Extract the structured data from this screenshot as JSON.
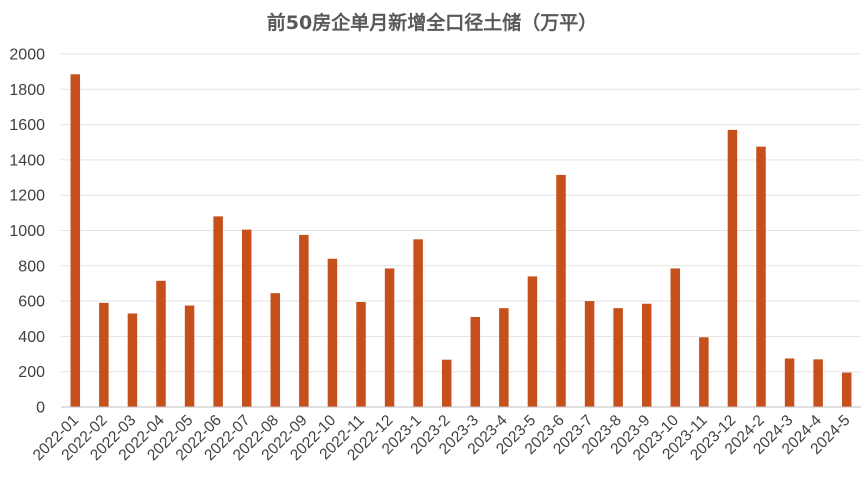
{
  "chart_data": {
    "type": "bar",
    "title": "前50房企单月新增全口径土储（万平）",
    "xlabel": "",
    "ylabel": "",
    "ylim": [
      0,
      2000
    ],
    "yticks": [
      0,
      200,
      400,
      600,
      800,
      1000,
      1200,
      1400,
      1600,
      1800,
      2000
    ],
    "grid": true,
    "legend": "none",
    "bar_color": "#c5501c",
    "categories": [
      "2022-01",
      "2022-02",
      "2022-03",
      "2022-04",
      "2022-05",
      "2022-06",
      "2022-07",
      "2022-08",
      "2022-09",
      "2022-10",
      "2022-11",
      "2022-12",
      "2023-1",
      "2023-2",
      "2023-3",
      "2023-4",
      "2023-5",
      "2023-6",
      "2023-7",
      "2023-8",
      "2023-9",
      "2023-10",
      "2023-11",
      "2023-12",
      "2024-2",
      "2024-3",
      "2024-4",
      "2024-5"
    ],
    "values": [
      1885,
      590,
      530,
      715,
      575,
      1080,
      1005,
      645,
      975,
      840,
      595,
      785,
      950,
      268,
      510,
      560,
      740,
      1315,
      600,
      560,
      585,
      785,
      395,
      1570,
      1475,
      275,
      270,
      195
    ]
  }
}
